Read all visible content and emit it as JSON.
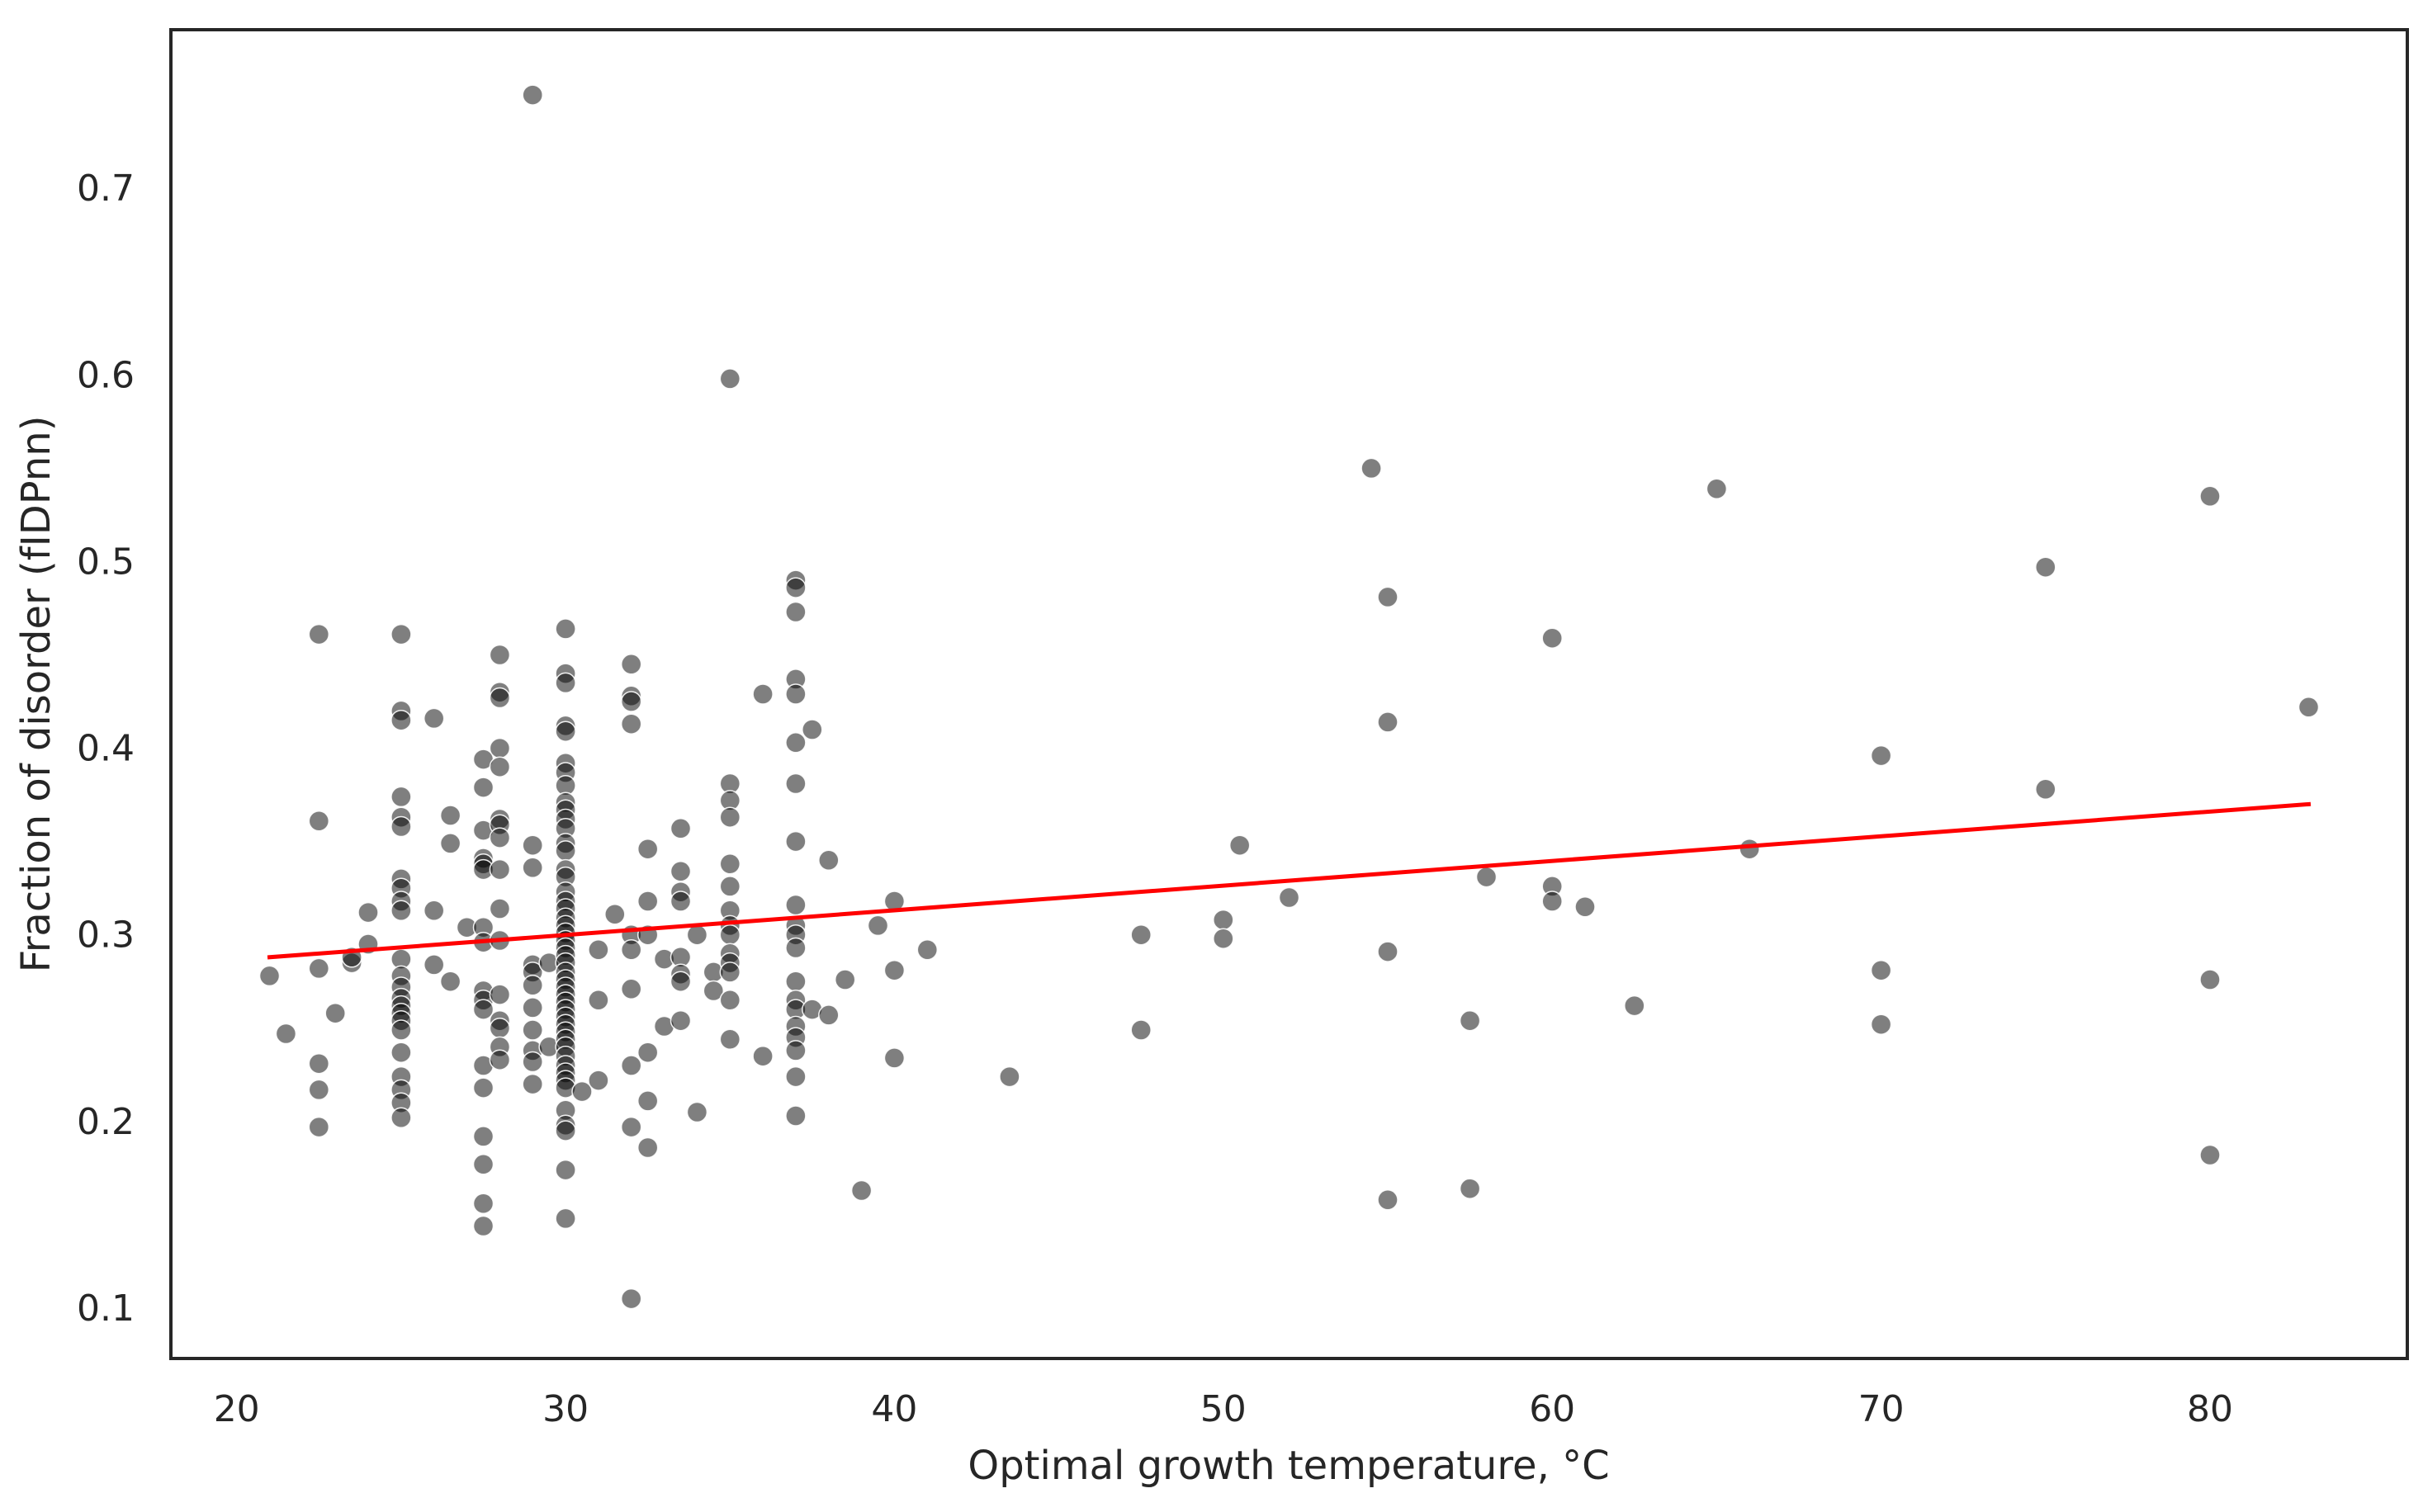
{
  "chart_data": {
    "type": "scatter",
    "xlabel": "Optimal growth temperature, °C",
    "ylabel": "Fraction of disorder (fIDPnn)",
    "xlim": [
      18,
      86
    ],
    "ylim": [
      0.073,
      0.785
    ],
    "xticks": [
      20,
      30,
      40,
      50,
      60,
      70,
      80
    ],
    "yticks": [
      0.1,
      0.2,
      0.3,
      0.4,
      0.5,
      0.6,
      0.7
    ],
    "grid": false,
    "legend": "none",
    "colors": {
      "points": "#000000",
      "trendline": "#ff0000",
      "frame": "#262626"
    },
    "series": [
      {
        "points": [
          [
            21,
            0.278
          ],
          [
            21.5,
            0.247
          ],
          [
            22.5,
            0.461
          ],
          [
            22.5,
            0.361
          ],
          [
            22.5,
            0.282
          ],
          [
            22.5,
            0.231
          ],
          [
            22.5,
            0.217
          ],
          [
            22.5,
            0.197
          ],
          [
            23,
            0.258
          ],
          [
            23.5,
            0.285
          ],
          [
            23.5,
            0.288
          ],
          [
            24,
            0.295
          ],
          [
            24,
            0.312
          ],
          [
            25,
            0.461
          ],
          [
            25,
            0.42
          ],
          [
            25,
            0.415
          ],
          [
            25,
            0.374
          ],
          [
            25,
            0.363
          ],
          [
            25,
            0.358
          ],
          [
            25,
            0.33
          ],
          [
            25,
            0.325
          ],
          [
            25,
            0.318
          ],
          [
            25,
            0.313
          ],
          [
            25,
            0.287
          ],
          [
            25,
            0.278
          ],
          [
            25,
            0.272
          ],
          [
            25,
            0.266
          ],
          [
            25,
            0.262
          ],
          [
            25,
            0.258
          ],
          [
            25,
            0.254
          ],
          [
            25,
            0.249
          ],
          [
            25,
            0.237
          ],
          [
            25,
            0.224
          ],
          [
            25,
            0.217
          ],
          [
            25,
            0.21
          ],
          [
            25,
            0.202
          ],
          [
            26,
            0.416
          ],
          [
            26,
            0.313
          ],
          [
            26,
            0.284
          ],
          [
            26.5,
            0.364
          ],
          [
            26.5,
            0.349
          ],
          [
            26.5,
            0.275
          ],
          [
            27,
            0.304
          ],
          [
            27.5,
            0.394
          ],
          [
            27.5,
            0.379
          ],
          [
            27.5,
            0.356
          ],
          [
            27.5,
            0.341
          ],
          [
            27.5,
            0.338
          ],
          [
            27.5,
            0.335
          ],
          [
            27.5,
            0.304
          ],
          [
            27.5,
            0.296
          ],
          [
            27.5,
            0.27
          ],
          [
            27.5,
            0.265
          ],
          [
            27.5,
            0.26
          ],
          [
            27.5,
            0.23
          ],
          [
            27.5,
            0.218
          ],
          [
            27.5,
            0.192
          ],
          [
            27.5,
            0.177
          ],
          [
            27.5,
            0.156
          ],
          [
            27.5,
            0.144
          ],
          [
            28,
            0.45
          ],
          [
            28,
            0.43
          ],
          [
            28,
            0.427
          ],
          [
            28,
            0.4
          ],
          [
            28,
            0.39
          ],
          [
            28,
            0.362
          ],
          [
            28,
            0.359
          ],
          [
            28,
            0.352
          ],
          [
            28,
            0.335
          ],
          [
            28,
            0.314
          ],
          [
            28,
            0.297
          ],
          [
            28,
            0.268
          ],
          [
            28,
            0.254
          ],
          [
            28,
            0.25
          ],
          [
            28,
            0.24
          ],
          [
            28,
            0.233
          ],
          [
            29,
            0.75
          ],
          [
            29,
            0.348
          ],
          [
            29,
            0.336
          ],
          [
            29,
            0.284
          ],
          [
            29,
            0.28
          ],
          [
            29,
            0.273
          ],
          [
            29,
            0.261
          ],
          [
            29,
            0.249
          ],
          [
            29,
            0.238
          ],
          [
            29,
            0.232
          ],
          [
            29,
            0.22
          ],
          [
            29.5,
            0.285
          ],
          [
            29.5,
            0.24
          ],
          [
            30,
            0.464
          ],
          [
            30,
            0.44
          ],
          [
            30,
            0.435
          ],
          [
            30,
            0.412
          ],
          [
            30,
            0.409
          ],
          [
            30,
            0.392
          ],
          [
            30,
            0.387
          ],
          [
            30,
            0.38
          ],
          [
            30,
            0.371
          ],
          [
            30,
            0.367
          ],
          [
            30,
            0.362
          ],
          [
            30,
            0.357
          ],
          [
            30,
            0.349
          ],
          [
            30,
            0.345
          ],
          [
            30,
            0.335
          ],
          [
            30,
            0.331
          ],
          [
            30,
            0.323
          ],
          [
            30,
            0.318
          ],
          [
            30,
            0.314
          ],
          [
            30,
            0.309
          ],
          [
            30,
            0.305
          ],
          [
            30,
            0.301
          ],
          [
            30,
            0.297
          ],
          [
            30,
            0.293
          ],
          [
            30,
            0.289
          ],
          [
            30,
            0.285
          ],
          [
            30,
            0.28
          ],
          [
            30,
            0.276
          ],
          [
            30,
            0.272
          ],
          [
            30,
            0.268
          ],
          [
            30,
            0.264
          ],
          [
            30,
            0.26
          ],
          [
            30,
            0.256
          ],
          [
            30,
            0.252
          ],
          [
            30,
            0.248
          ],
          [
            30,
            0.244
          ],
          [
            30,
            0.24
          ],
          [
            30,
            0.235
          ],
          [
            30,
            0.23
          ],
          [
            30,
            0.226
          ],
          [
            30,
            0.222
          ],
          [
            30,
            0.218
          ],
          [
            30,
            0.206
          ],
          [
            30,
            0.198
          ],
          [
            30,
            0.195
          ],
          [
            30,
            0.174
          ],
          [
            30,
            0.148
          ],
          [
            30.5,
            0.216
          ],
          [
            31,
            0.292
          ],
          [
            31,
            0.265
          ],
          [
            31,
            0.222
          ],
          [
            31.5,
            0.311
          ],
          [
            32,
            0.445
          ],
          [
            32,
            0.428
          ],
          [
            32,
            0.425
          ],
          [
            32,
            0.413
          ],
          [
            32,
            0.3
          ],
          [
            32,
            0.292
          ],
          [
            32,
            0.271
          ],
          [
            32,
            0.23
          ],
          [
            32,
            0.197
          ],
          [
            32,
            0.105
          ],
          [
            32.5,
            0.346
          ],
          [
            32.5,
            0.318
          ],
          [
            32.5,
            0.3
          ],
          [
            32.5,
            0.237
          ],
          [
            32.5,
            0.211
          ],
          [
            32.5,
            0.186
          ],
          [
            33,
            0.287
          ],
          [
            33,
            0.251
          ],
          [
            33.5,
            0.357
          ],
          [
            33.5,
            0.334
          ],
          [
            33.5,
            0.323
          ],
          [
            33.5,
            0.318
          ],
          [
            33.5,
            0.288
          ],
          [
            33.5,
            0.279
          ],
          [
            33.5,
            0.275
          ],
          [
            33.5,
            0.254
          ],
          [
            34,
            0.3
          ],
          [
            34,
            0.205
          ],
          [
            34.5,
            0.28
          ],
          [
            34.5,
            0.27
          ],
          [
            35,
            0.598
          ],
          [
            35,
            0.381
          ],
          [
            35,
            0.372
          ],
          [
            35,
            0.363
          ],
          [
            35,
            0.338
          ],
          [
            35,
            0.326
          ],
          [
            35,
            0.313
          ],
          [
            35,
            0.305
          ],
          [
            35,
            0.3
          ],
          [
            35,
            0.29
          ],
          [
            35,
            0.285
          ],
          [
            35,
            0.28
          ],
          [
            35,
            0.265
          ],
          [
            35,
            0.244
          ],
          [
            36,
            0.429
          ],
          [
            36,
            0.235
          ],
          [
            37,
            0.49
          ],
          [
            37,
            0.486
          ],
          [
            37,
            0.473
          ],
          [
            37,
            0.437
          ],
          [
            37,
            0.429
          ],
          [
            37,
            0.403
          ],
          [
            37,
            0.381
          ],
          [
            37,
            0.35
          ],
          [
            37,
            0.316
          ],
          [
            37,
            0.305
          ],
          [
            37,
            0.3
          ],
          [
            37,
            0.293
          ],
          [
            37,
            0.275
          ],
          [
            37,
            0.265
          ],
          [
            37,
            0.26
          ],
          [
            37,
            0.251
          ],
          [
            37,
            0.245
          ],
          [
            37,
            0.238
          ],
          [
            37,
            0.224
          ],
          [
            37,
            0.203
          ],
          [
            37.5,
            0.41
          ],
          [
            37.5,
            0.26
          ],
          [
            38,
            0.34
          ],
          [
            38,
            0.257
          ],
          [
            38.5,
            0.276
          ],
          [
            39,
            0.163
          ],
          [
            39.5,
            0.305
          ],
          [
            40,
            0.318
          ],
          [
            40,
            0.281
          ],
          [
            40,
            0.234
          ],
          [
            41,
            0.292
          ],
          [
            43.5,
            0.224
          ],
          [
            47.5,
            0.3
          ],
          [
            47.5,
            0.249
          ],
          [
            50,
            0.308
          ],
          [
            50,
            0.298
          ],
          [
            50.5,
            0.348
          ],
          [
            52,
            0.32
          ],
          [
            54.5,
            0.55
          ],
          [
            55,
            0.481
          ],
          [
            55,
            0.414
          ],
          [
            55,
            0.291
          ],
          [
            55,
            0.158
          ],
          [
            57.5,
            0.254
          ],
          [
            57.5,
            0.164
          ],
          [
            58,
            0.331
          ],
          [
            60,
            0.459
          ],
          [
            60,
            0.326
          ],
          [
            60,
            0.318
          ],
          [
            61,
            0.315
          ],
          [
            62.5,
            0.262
          ],
          [
            65,
            0.539
          ],
          [
            66,
            0.346
          ],
          [
            70,
            0.396
          ],
          [
            70,
            0.281
          ],
          [
            70,
            0.252
          ],
          [
            75,
            0.497
          ],
          [
            75,
            0.378
          ],
          [
            80,
            0.535
          ],
          [
            80,
            0.276
          ],
          [
            80,
            0.182
          ],
          [
            83,
            0.422
          ]
        ]
      }
    ],
    "trendline": {
      "x": [
        21,
        83
      ],
      "y": [
        0.288,
        0.37
      ]
    }
  }
}
